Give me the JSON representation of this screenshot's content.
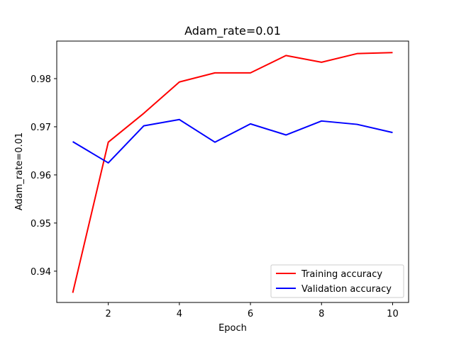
{
  "chart_data": {
    "type": "line",
    "title": "Adam_rate=0.01",
    "xlabel": "Epoch",
    "ylabel": "Adam_rate=0.01",
    "x": [
      1,
      2,
      3,
      4,
      5,
      6,
      7,
      8,
      9,
      10
    ],
    "xticks": [
      "2",
      "4",
      "6",
      "8",
      "10"
    ],
    "yticks": [
      "0.94",
      "0.95",
      "0.96",
      "0.97",
      "0.98"
    ],
    "xlim": [
      0.55,
      10.45
    ],
    "ylim": [
      0.9335,
      0.9878
    ],
    "grid": false,
    "legend_position": "lower-right",
    "series": [
      {
        "name": "Training accuracy",
        "color": "#ff0000",
        "values": [
          0.9355,
          0.9668,
          0.9728,
          0.9793,
          0.9812,
          0.9812,
          0.9848,
          0.9834,
          0.9852,
          0.9854
        ]
      },
      {
        "name": "Validation accuracy",
        "color": "#0000ff",
        "values": [
          0.9669,
          0.9625,
          0.9702,
          0.9715,
          0.9668,
          0.9706,
          0.9683,
          0.9712,
          0.9705,
          0.9688
        ]
      }
    ]
  }
}
